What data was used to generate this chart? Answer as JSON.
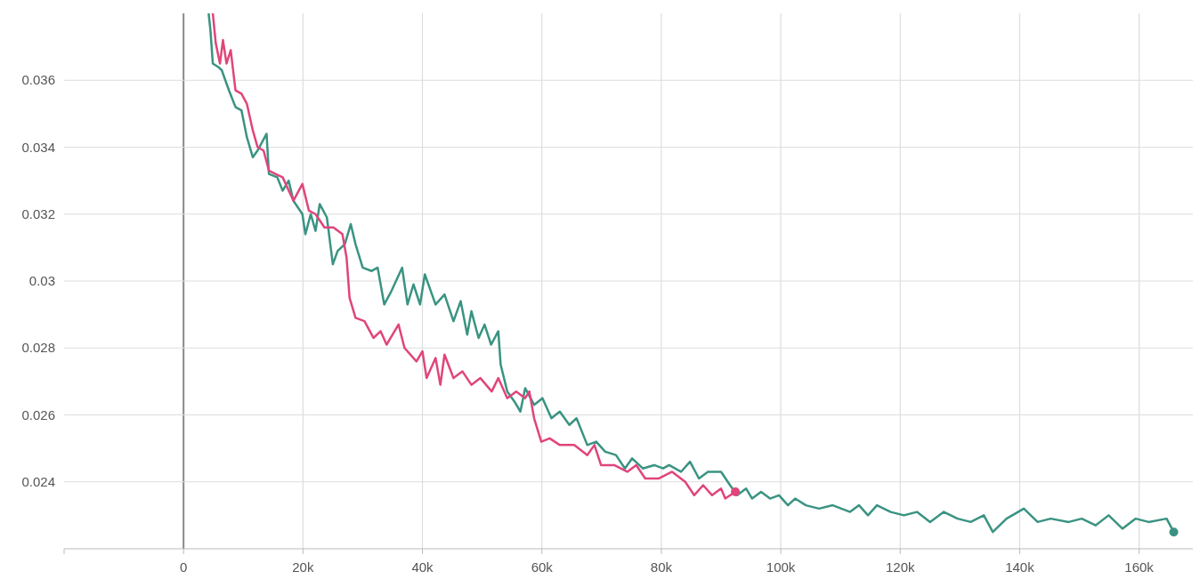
{
  "chart_data": {
    "type": "line",
    "xlim": [
      -20000,
      169000
    ],
    "ylim": [
      0.022,
      0.038
    ],
    "xticks": [
      {
        "value": -20000,
        "label": null
      },
      0,
      {
        "value": 20000,
        "label": "20k"
      },
      {
        "value": 40000,
        "label": "40k"
      },
      {
        "value": 60000,
        "label": "60k"
      },
      {
        "value": 80000,
        "label": "80k"
      },
      {
        "value": 100000,
        "label": "100k"
      },
      {
        "value": 120000,
        "label": "120k"
      },
      {
        "value": 140000,
        "label": "140k"
      },
      {
        "value": 160000,
        "label": "160k"
      }
    ],
    "yticks": [
      0.024,
      0.026,
      0.028,
      0.03,
      0.032,
      0.034,
      0.036
    ],
    "grid": true,
    "line_style": "solid",
    "series": [
      {
        "color": "#3a9382",
        "x": [
          4200,
          4500,
          4900,
          5800,
          6400,
          7600,
          8700,
          9700,
          10600,
          11600,
          12400,
          13900,
          14300,
          15700,
          16600,
          17600,
          18400,
          19900,
          20400,
          21300,
          22100,
          22800,
          24000,
          25000,
          25800,
          27000,
          28000,
          28800,
          30000,
          31500,
          32500,
          33600,
          34800,
          36600,
          37500,
          38500,
          39600,
          40400,
          42200,
          43700,
          45200,
          46400,
          47500,
          48200,
          49400,
          50400,
          51500,
          52700,
          53100,
          54200,
          55400,
          56400,
          57200,
          58700,
          60100,
          61600,
          63000,
          64600,
          65800,
          67600,
          69100,
          70600,
          72400,
          73900,
          75100,
          76900,
          78800,
          80300,
          81300,
          83300,
          84800,
          86300,
          87800,
          90000,
          91500,
          92700,
          94200,
          95200,
          96700,
          98200,
          99700,
          101200,
          102400,
          104200,
          106400,
          108700,
          111600,
          113100,
          114600,
          116100,
          118400,
          120600,
          122800,
          125000,
          127300,
          129600,
          131800,
          134000,
          135500,
          137800,
          140700,
          143000,
          145200,
          148200,
          150400,
          152700,
          154900,
          157200,
          159400,
          161600,
          164600,
          165800
        ],
        "values": [
          0.038,
          0.0375,
          0.0365,
          0.0364,
          0.0363,
          0.0357,
          0.0352,
          0.0351,
          0.0343,
          0.0337,
          0.0339,
          0.0344,
          0.0332,
          0.0331,
          0.0327,
          0.033,
          0.0324,
          0.032,
          0.0314,
          0.032,
          0.0315,
          0.0323,
          0.0319,
          0.0305,
          0.0309,
          0.0311,
          0.0317,
          0.0311,
          0.0304,
          0.0303,
          0.0304,
          0.0293,
          0.0297,
          0.0304,
          0.0293,
          0.0299,
          0.0293,
          0.0302,
          0.0293,
          0.0296,
          0.0288,
          0.0294,
          0.0284,
          0.0291,
          0.0283,
          0.0287,
          0.0281,
          0.0285,
          0.0275,
          0.0267,
          0.0264,
          0.0261,
          0.0268,
          0.0263,
          0.0265,
          0.0259,
          0.0261,
          0.0257,
          0.0259,
          0.0251,
          0.0252,
          0.0249,
          0.0248,
          0.0244,
          0.0247,
          0.0244,
          0.0245,
          0.0244,
          0.0245,
          0.0243,
          0.0246,
          0.0241,
          0.0243,
          0.0243,
          0.0239,
          0.0236,
          0.0238,
          0.0235,
          0.0237,
          0.0235,
          0.0236,
          0.0233,
          0.0235,
          0.0233,
          0.0232,
          0.0233,
          0.0231,
          0.0233,
          0.023,
          0.0233,
          0.0231,
          0.023,
          0.0231,
          0.0228,
          0.0231,
          0.0229,
          0.0228,
          0.023,
          0.0225,
          0.0229,
          0.0232,
          0.0228,
          0.0229,
          0.0228,
          0.0229,
          0.0227,
          0.023,
          0.0226,
          0.0229,
          0.0228,
          0.0229,
          0.0225
        ]
      },
      {
        "color": "#e0457b",
        "x": [
          4900,
          5400,
          6100,
          6600,
          7200,
          7900,
          8700,
          9700,
          10600,
          11600,
          12400,
          13400,
          14300,
          15400,
          16600,
          18400,
          19900,
          21000,
          22100,
          23600,
          25100,
          26600,
          27300,
          27800,
          28800,
          30300,
          31800,
          33000,
          34000,
          36000,
          37000,
          39000,
          40000,
          40700,
          42200,
          43000,
          43700,
          45200,
          46700,
          48200,
          49700,
          51600,
          52700,
          54200,
          55700,
          57200,
          57900,
          58700,
          59900,
          61300,
          63000,
          65400,
          67600,
          68800,
          69900,
          72100,
          74300,
          75800,
          77300,
          79600,
          81800,
          84000,
          85500,
          87000,
          88500,
          90000,
          90700,
          92400
        ],
        "values": [
          0.038,
          0.0371,
          0.0365,
          0.0372,
          0.0365,
          0.0369,
          0.0357,
          0.0356,
          0.0353,
          0.0345,
          0.034,
          0.0339,
          0.0333,
          0.0332,
          0.0331,
          0.0324,
          0.0329,
          0.0321,
          0.032,
          0.0316,
          0.0316,
          0.0314,
          0.0307,
          0.0295,
          0.0289,
          0.0288,
          0.0283,
          0.0285,
          0.0281,
          0.0287,
          0.028,
          0.0276,
          0.0279,
          0.0271,
          0.0277,
          0.0269,
          0.0278,
          0.0271,
          0.0273,
          0.0269,
          0.0271,
          0.0267,
          0.0271,
          0.0265,
          0.0267,
          0.0265,
          0.0267,
          0.0259,
          0.0252,
          0.0253,
          0.0251,
          0.0251,
          0.0248,
          0.0251,
          0.0245,
          0.0245,
          0.0243,
          0.0245,
          0.0241,
          0.0241,
          0.0243,
          0.024,
          0.0236,
          0.0239,
          0.0236,
          0.0238,
          0.0235,
          0.0237
        ]
      }
    ]
  }
}
